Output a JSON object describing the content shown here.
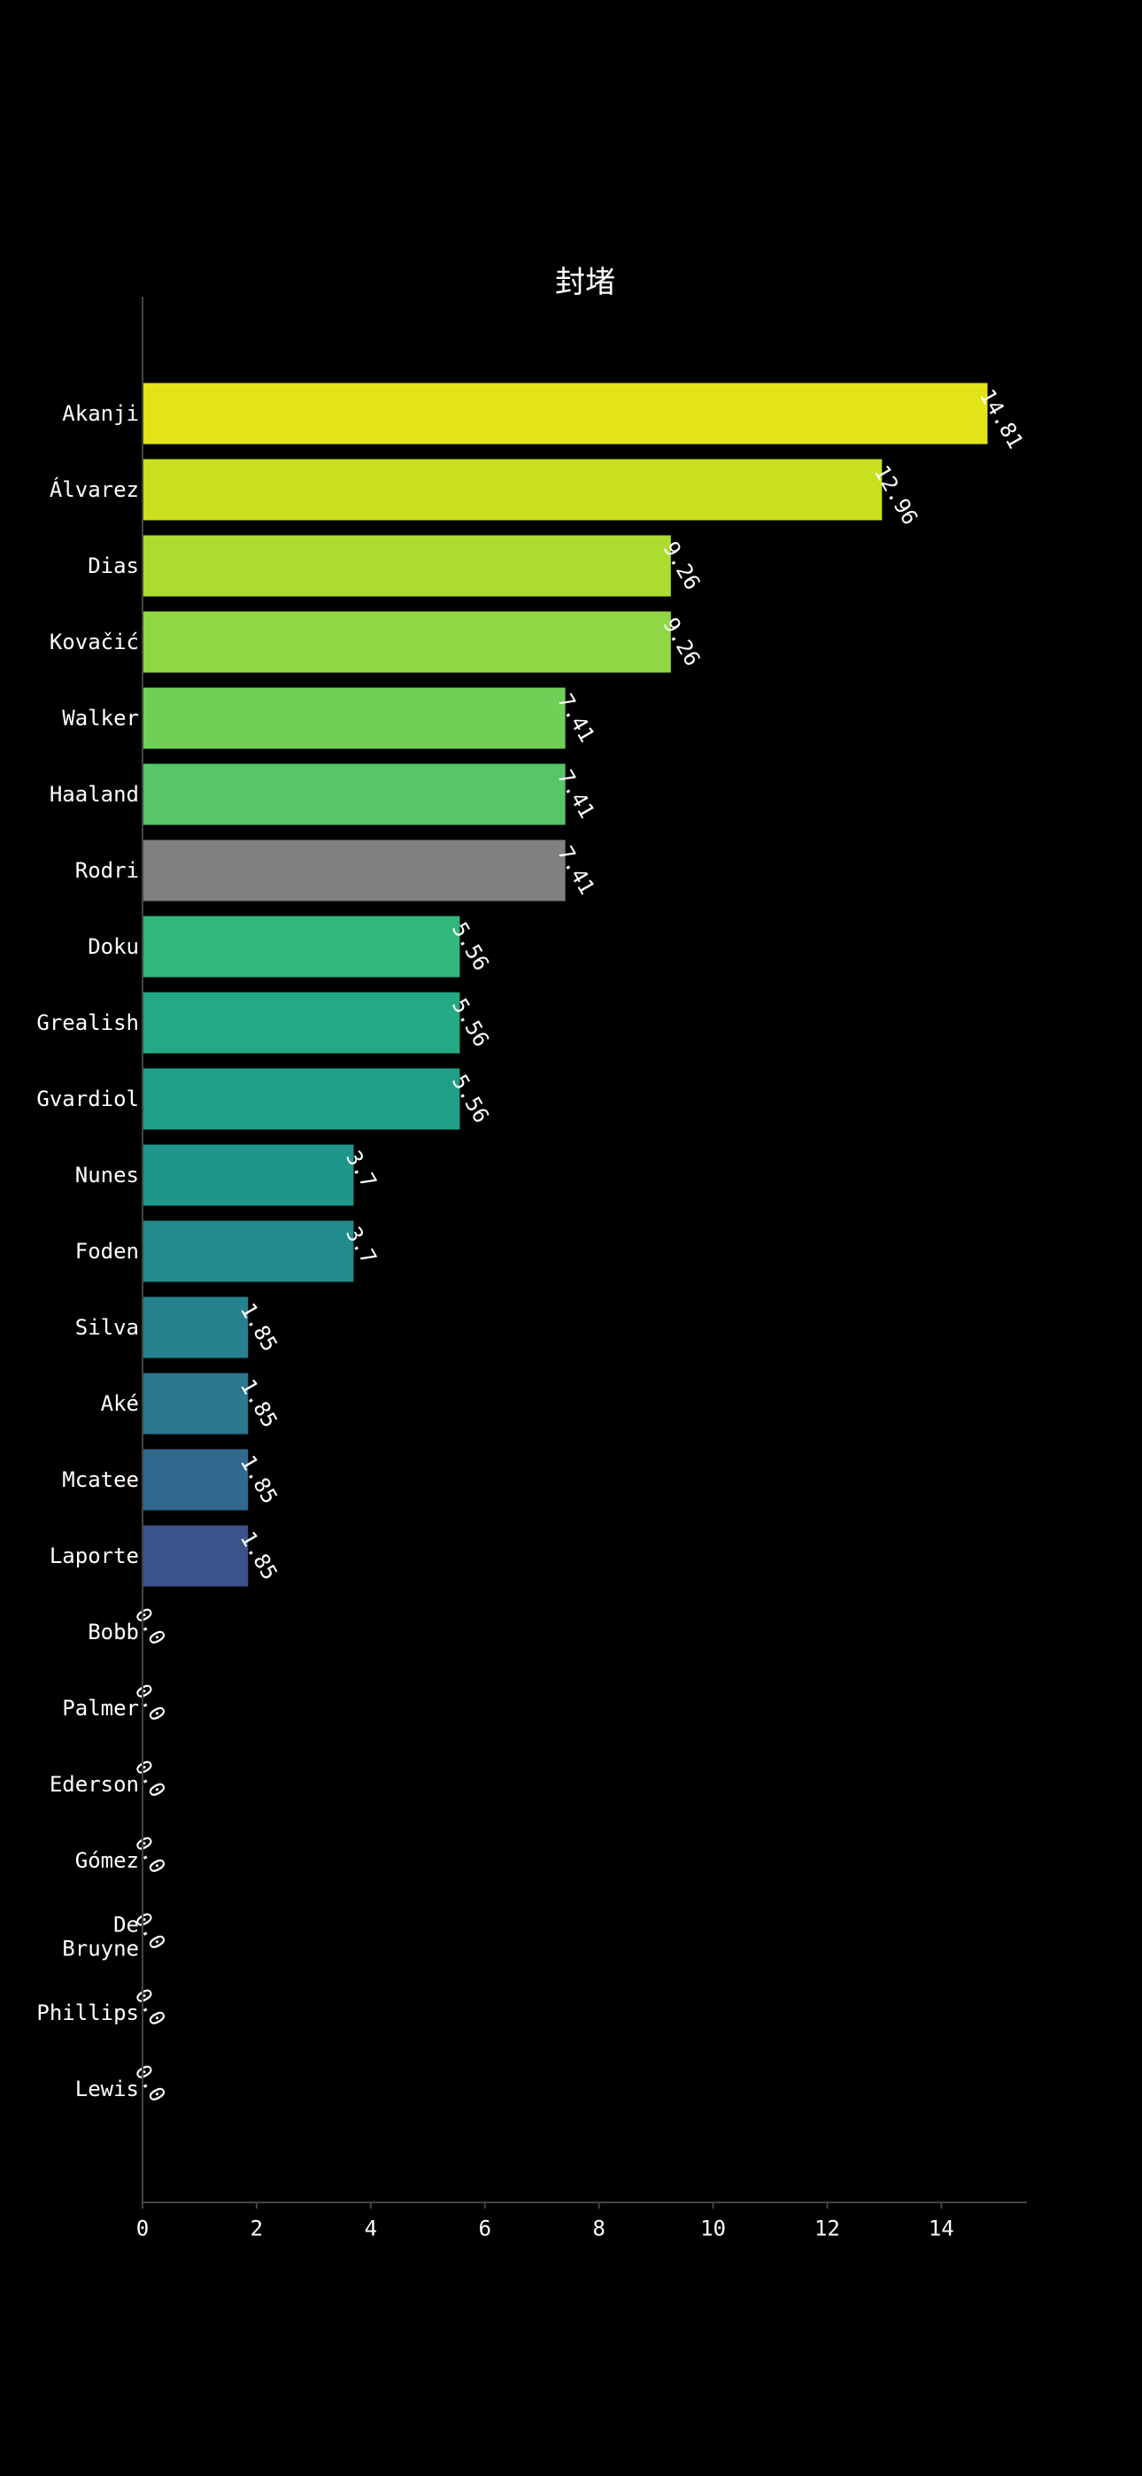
{
  "chart_data": {
    "type": "bar",
    "orientation": "horizontal",
    "title": "封堵",
    "xlabel": "",
    "ylabel": "",
    "xlim": [
      0,
      15.5
    ],
    "xticks": [
      0,
      2,
      4,
      6,
      8,
      10,
      12,
      14
    ],
    "grid": false,
    "legend": "none",
    "categories": [
      [
        "Akanji"
      ],
      [
        "Álvarez"
      ],
      [
        "Dias"
      ],
      [
        "Kovačić"
      ],
      [
        "Walker"
      ],
      [
        "Haaland"
      ],
      [
        "Rodri"
      ],
      [
        "Doku"
      ],
      [
        "Grealish"
      ],
      [
        "Gvardiol"
      ],
      [
        "Nunes"
      ],
      [
        "Foden"
      ],
      [
        "Silva"
      ],
      [
        "Aké"
      ],
      [
        "Mcatee"
      ],
      [
        "Laporte"
      ],
      [
        "Bobb"
      ],
      [
        "Palmer"
      ],
      [
        "Ederson"
      ],
      [
        "Gómez"
      ],
      [
        "De",
        "Bruyne"
      ],
      [
        "Phillips"
      ],
      [
        "Lewis"
      ]
    ],
    "values": [
      14.81,
      12.96,
      9.26,
      9.26,
      7.41,
      7.41,
      7.41,
      5.56,
      5.56,
      5.56,
      3.7,
      3.7,
      1.85,
      1.85,
      1.85,
      1.85,
      0.0,
      0.0,
      0.0,
      0.0,
      0.0,
      0.0,
      0.0
    ],
    "value_labels": [
      "14.81",
      "12.96",
      "9.26",
      "9.26",
      "7.41",
      "7.41",
      "7.41",
      "5.56",
      "5.56",
      "5.56",
      "3.7",
      "3.7",
      "1.85",
      "1.85",
      "1.85",
      "1.85",
      "0.0",
      "0.0",
      "0.0",
      "0.0",
      "0.0",
      "0.0",
      "0.0"
    ],
    "colors": [
      "#e2e418",
      "#c8e020",
      "#addc30",
      "#8fd744",
      "#70cf57",
      "#56c667",
      "#808080",
      "#32b67a",
      "#23a983",
      "#1f9f88",
      "#1f968b",
      "#228b8d",
      "#26818e",
      "#2a778e",
      "#31688e",
      "#3b528b",
      "#414487",
      "#46327e",
      "#472d7b",
      "#48186a",
      "#450559",
      "#440154",
      "#440154"
    ]
  }
}
